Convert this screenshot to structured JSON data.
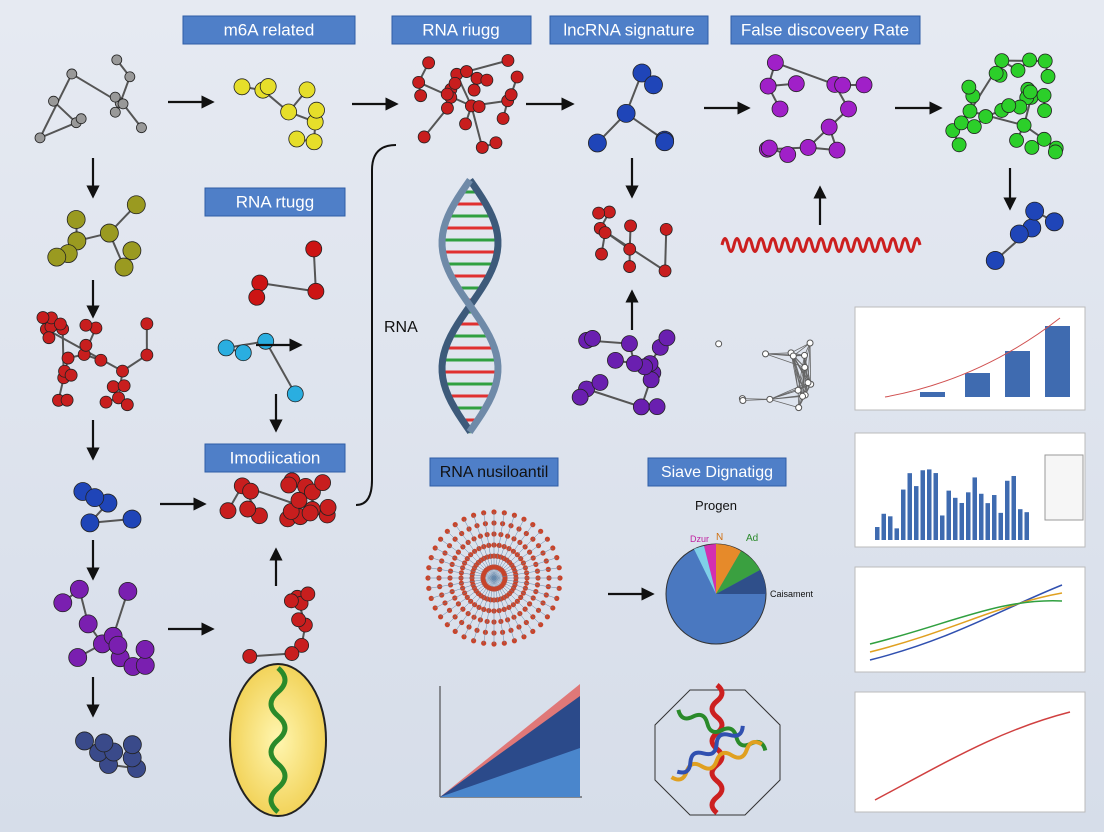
{
  "labels": {
    "m6a": "m6A related",
    "rna_riugg": "RNA riugg",
    "lncrna": "lncRNA signature",
    "fdr": "False discoveery Rate",
    "rna_rtugg": "RNA rtugg",
    "rna": "RNA",
    "modification": "Imodiication",
    "nusiloantil": "RNA nusiloantil",
    "siave": "Siave Dignatigg"
  },
  "pie": {
    "title": "Progen",
    "slice_labels": [
      "Dzur",
      "N",
      "Ad",
      "Caisament"
    ]
  }
}
